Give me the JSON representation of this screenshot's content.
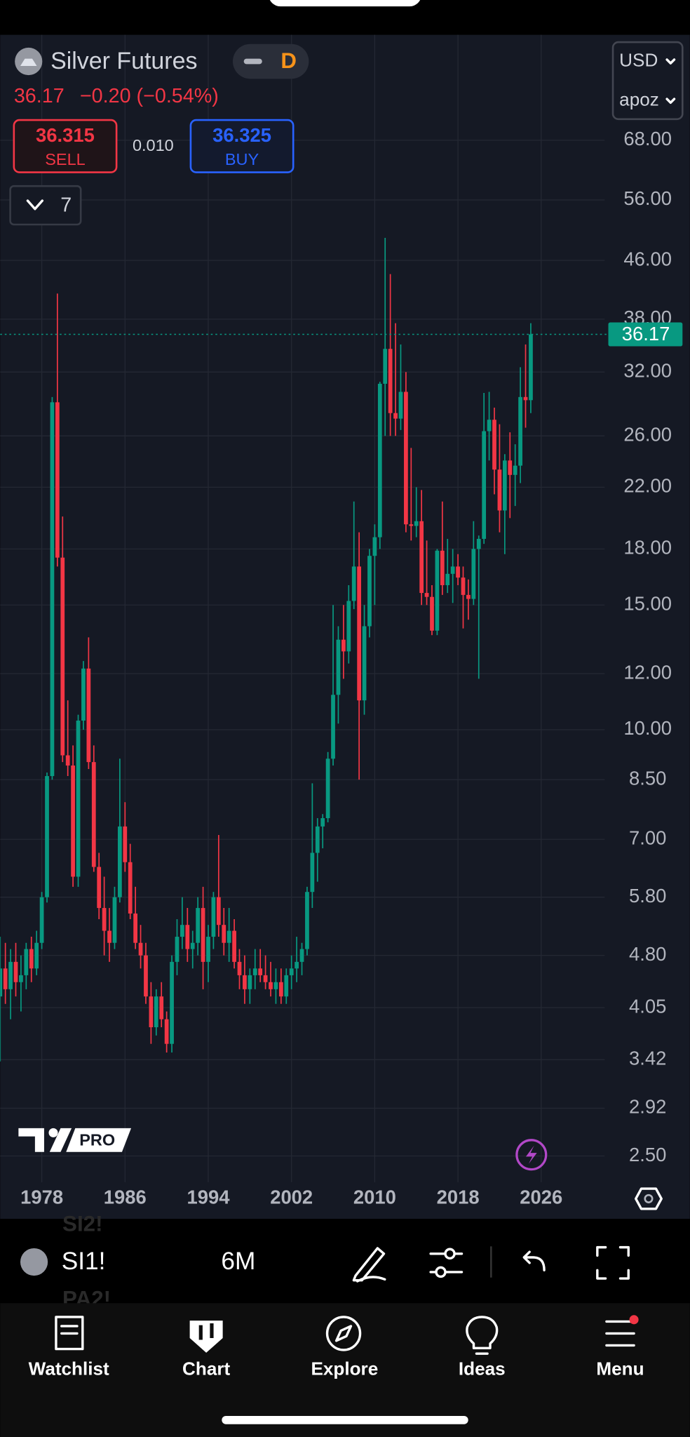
{
  "header": {
    "symbol": "Silver Futures",
    "interval_badge": "D",
    "quote": "36.17",
    "change": "−0.20 (−0.54%)",
    "currency": "USD",
    "scale_mode": "apoz"
  },
  "trade": {
    "sell_price": "36.315",
    "sell_label": "SELL",
    "spread": "0.010",
    "buy_price": "36.325",
    "buy_label": "BUY"
  },
  "indicators_toggle": "7",
  "logo": "PRO",
  "toolbar": {
    "symbol": "SI1!",
    "interval": "6M",
    "ghost_above": "SI2!",
    "ghost_below": "PA2!"
  },
  "nav": [
    "Watchlist",
    "Chart",
    "Explore",
    "Ideas",
    "Menu"
  ],
  "chart_data": {
    "type": "candlestick",
    "log_scale": true,
    "grid": true,
    "up_color": "#089981",
    "down_color": "#f23645",
    "xlim": [
      1974.0,
      2032.1
    ],
    "xticks": [
      1978,
      1986,
      1994,
      2002,
      2010,
      2018,
      2026
    ],
    "ylim": [
      2.33,
      95.8
    ],
    "yticks": [
      {
        "value": 2.5,
        "label": "2.50"
      },
      {
        "value": 2.92,
        "label": "2.92"
      },
      {
        "value": 3.42,
        "label": "3.42"
      },
      {
        "value": 4.05,
        "label": "4.05"
      },
      {
        "value": 4.8,
        "label": "4.80"
      },
      {
        "value": 5.8,
        "label": "5.80"
      },
      {
        "value": 7,
        "label": "7.00"
      },
      {
        "value": 8.5,
        "label": "8.50"
      },
      {
        "value": 10,
        "label": "10.00"
      },
      {
        "value": 12,
        "label": "12.00"
      },
      {
        "value": 15,
        "label": "15.00"
      },
      {
        "value": 18,
        "label": "18.00"
      },
      {
        "value": 22,
        "label": "22.00"
      },
      {
        "value": 26,
        "label": "26.00"
      },
      {
        "value": 32,
        "label": "32.00"
      },
      {
        "value": 38,
        "label": "38.00"
      },
      {
        "value": 46,
        "label": "46.00"
      },
      {
        "value": 56,
        "label": "56.00"
      },
      {
        "value": 68,
        "label": "68.00"
      }
    ],
    "x": [
      1974,
      1974.5,
      1975,
      1975.5,
      1976,
      1976.5,
      1977,
      1977.5,
      1978,
      1978.5,
      1979,
      1979.5,
      1980,
      1980.5,
      1981,
      1981.5,
      1982,
      1982.5,
      1983,
      1983.5,
      1984,
      1984.5,
      1985,
      1985.5,
      1986,
      1986.5,
      1987,
      1987.5,
      1988,
      1988.5,
      1989,
      1989.5,
      1990,
      1990.5,
      1991,
      1991.5,
      1992,
      1992.5,
      1993,
      1993.5,
      1994,
      1994.5,
      1995,
      1995.5,
      1996,
      1996.5,
      1997,
      1997.5,
      1998,
      1998.5,
      1999,
      1999.5,
      2000,
      2000.5,
      2001,
      2001.5,
      2002,
      2002.5,
      2003,
      2003.5,
      2004,
      2004.5,
      2005,
      2005.5,
      2006,
      2006.5,
      2007,
      2007.5,
      2008,
      2008.5,
      2009,
      2009.5,
      2010,
      2010.5,
      2011,
      2011.5,
      2012,
      2012.5,
      2013,
      2013.5,
      2014,
      2014.5,
      2015,
      2015.5,
      2016,
      2016.5,
      2017,
      2017.5,
      2018,
      2018.5,
      2019,
      2019.5,
      2020,
      2020.5,
      2021,
      2021.5,
      2022,
      2022.5,
      2023,
      2023.5,
      2024,
      2024.5,
      2025
    ],
    "open": [
      4.2,
      4.6,
      4.3,
      4.7,
      4.4,
      4.5,
      4.9,
      4.6,
      5.0,
      5.8,
      8.6,
      29,
      17.5,
      9.2,
      8.9,
      6.2,
      10.3,
      12.2,
      9.0,
      6.4,
      5.6,
      5.2,
      5.0,
      5.8,
      7.3,
      6.5,
      5.5,
      5.0,
      4.8,
      4.2,
      3.8,
      4.2,
      3.9,
      3.6,
      4.7,
      5.1,
      5.3,
      4.9,
      5.0,
      5.6,
      4.7,
      5.1,
      5.8,
      5.3,
      5.0,
      5.2,
      4.7,
      4.5,
      4.3,
      4.5,
      4.6,
      4.5,
      4.4,
      4.3,
      4.4,
      4.2,
      4.5,
      4.6,
      4.7,
      4.9,
      5.9,
      6.7,
      7.3,
      7.5,
      9.1,
      11.2,
      13.4,
      12.9,
      15.2,
      17,
      11,
      14,
      17.6,
      18.7,
      30.8,
      34.5,
      28,
      27.5,
      30,
      19.5,
      19.4,
      19.7,
      15.6,
      15.4,
      13.8,
      17.9,
      16,
      16.6,
      17,
      16.4,
      15.5,
      15.3,
      18,
      18.6,
      26.4,
      27.4,
      23.3,
      20.4,
      24,
      22.9,
      23.6,
      29.5,
      29.2
    ],
    "high": [
      5.1,
      5.0,
      4.9,
      5.0,
      4.8,
      5.0,
      5.1,
      5.2,
      5.9,
      8.7,
      29.5,
      41.3,
      20,
      11,
      9.5,
      10.5,
      12.5,
      13.5,
      9.5,
      6.7,
      6.2,
      5.6,
      6.0,
      9.1,
      7.9,
      6.9,
      6.0,
      5.3,
      5.0,
      4.4,
      4.3,
      4.4,
      4.0,
      4.8,
      5.4,
      5.8,
      5.6,
      5.2,
      5.8,
      6.0,
      5.3,
      5.9,
      7.1,
      5.6,
      5.6,
      5.4,
      4.9,
      4.8,
      4.6,
      4.9,
      4.9,
      4.8,
      4.7,
      4.6,
      4.6,
      4.6,
      4.8,
      5.1,
      5.0,
      6.0,
      8.4,
      7.5,
      7.6,
      9.3,
      15,
      14,
      15,
      16,
      21,
      19,
      15,
      18,
      19.5,
      31,
      49.5,
      44,
      37.5,
      35,
      32,
      25,
      22,
      21.8,
      18.5,
      16,
      18,
      21,
      18.6,
      18,
      17.7,
      17,
      16.3,
      19.7,
      18.8,
      29.9,
      30,
      28.5,
      27,
      24.5,
      26.3,
      25.3,
      32.5,
      35,
      37.5
    ],
    "low": [
      3.4,
      4.1,
      3.9,
      4.2,
      4.0,
      4.3,
      4.4,
      4.5,
      4.9,
      5.7,
      8.5,
      17,
      9.0,
      8.6,
      6.0,
      6.0,
      10.0,
      8.8,
      6.3,
      5.4,
      4.8,
      4.7,
      4.9,
      5.7,
      6.3,
      5.4,
      4.9,
      4.6,
      4.1,
      3.6,
      3.7,
      3.8,
      3.5,
      3.5,
      4.5,
      4.9,
      4.7,
      4.6,
      4.8,
      4.3,
      4.4,
      4.9,
      5.1,
      4.8,
      4.7,
      4.6,
      4.3,
      4.1,
      4.1,
      4.3,
      4.4,
      4.3,
      4.2,
      4.1,
      4.1,
      4.1,
      4.3,
      4.4,
      4.5,
      4.8,
      5.6,
      6.1,
      6.8,
      7.4,
      8.9,
      10.2,
      11.8,
      12.4,
      14.8,
      8.5,
      10.5,
      13.5,
      15,
      18,
      26,
      26,
      26,
      26.5,
      19,
      18.5,
      18.7,
      15,
      15,
      13.6,
      13.6,
      15.5,
      15.6,
      15.1,
      16,
      13.9,
      14.3,
      15,
      11.8,
      18.3,
      24,
      21.5,
      19,
      17.7,
      19.9,
      20.7,
      22.3,
      26.7,
      28
    ],
    "close": [
      4.6,
      4.3,
      4.7,
      4.4,
      4.5,
      4.9,
      4.6,
      5.0,
      5.8,
      8.6,
      29,
      17.5,
      9.2,
      8.9,
      6.2,
      10.3,
      12.2,
      9.0,
      6.4,
      5.6,
      5.2,
      5.0,
      5.8,
      7.3,
      6.5,
      5.5,
      5.0,
      4.8,
      4.2,
      3.8,
      4.2,
      3.9,
      3.6,
      4.7,
      5.1,
      5.3,
      4.9,
      5.0,
      5.6,
      4.7,
      5.1,
      5.8,
      5.3,
      5.0,
      5.2,
      4.7,
      4.5,
      4.3,
      4.5,
      4.6,
      4.5,
      4.4,
      4.3,
      4.4,
      4.2,
      4.5,
      4.6,
      4.7,
      4.9,
      5.9,
      6.7,
      7.3,
      7.5,
      9.1,
      11.2,
      13.4,
      12.9,
      15.2,
      17,
      11,
      14,
      17.6,
      18.7,
      30.8,
      34.5,
      28,
      27.5,
      30,
      19.5,
      19.4,
      19.7,
      15.6,
      15.4,
      13.8,
      17.9,
      16,
      16.6,
      17,
      16.4,
      15.5,
      15.3,
      18,
      18.6,
      26.4,
      27.4,
      23.3,
      20.4,
      24,
      22.9,
      23.6,
      29.5,
      29.2,
      36.17
    ]
  }
}
